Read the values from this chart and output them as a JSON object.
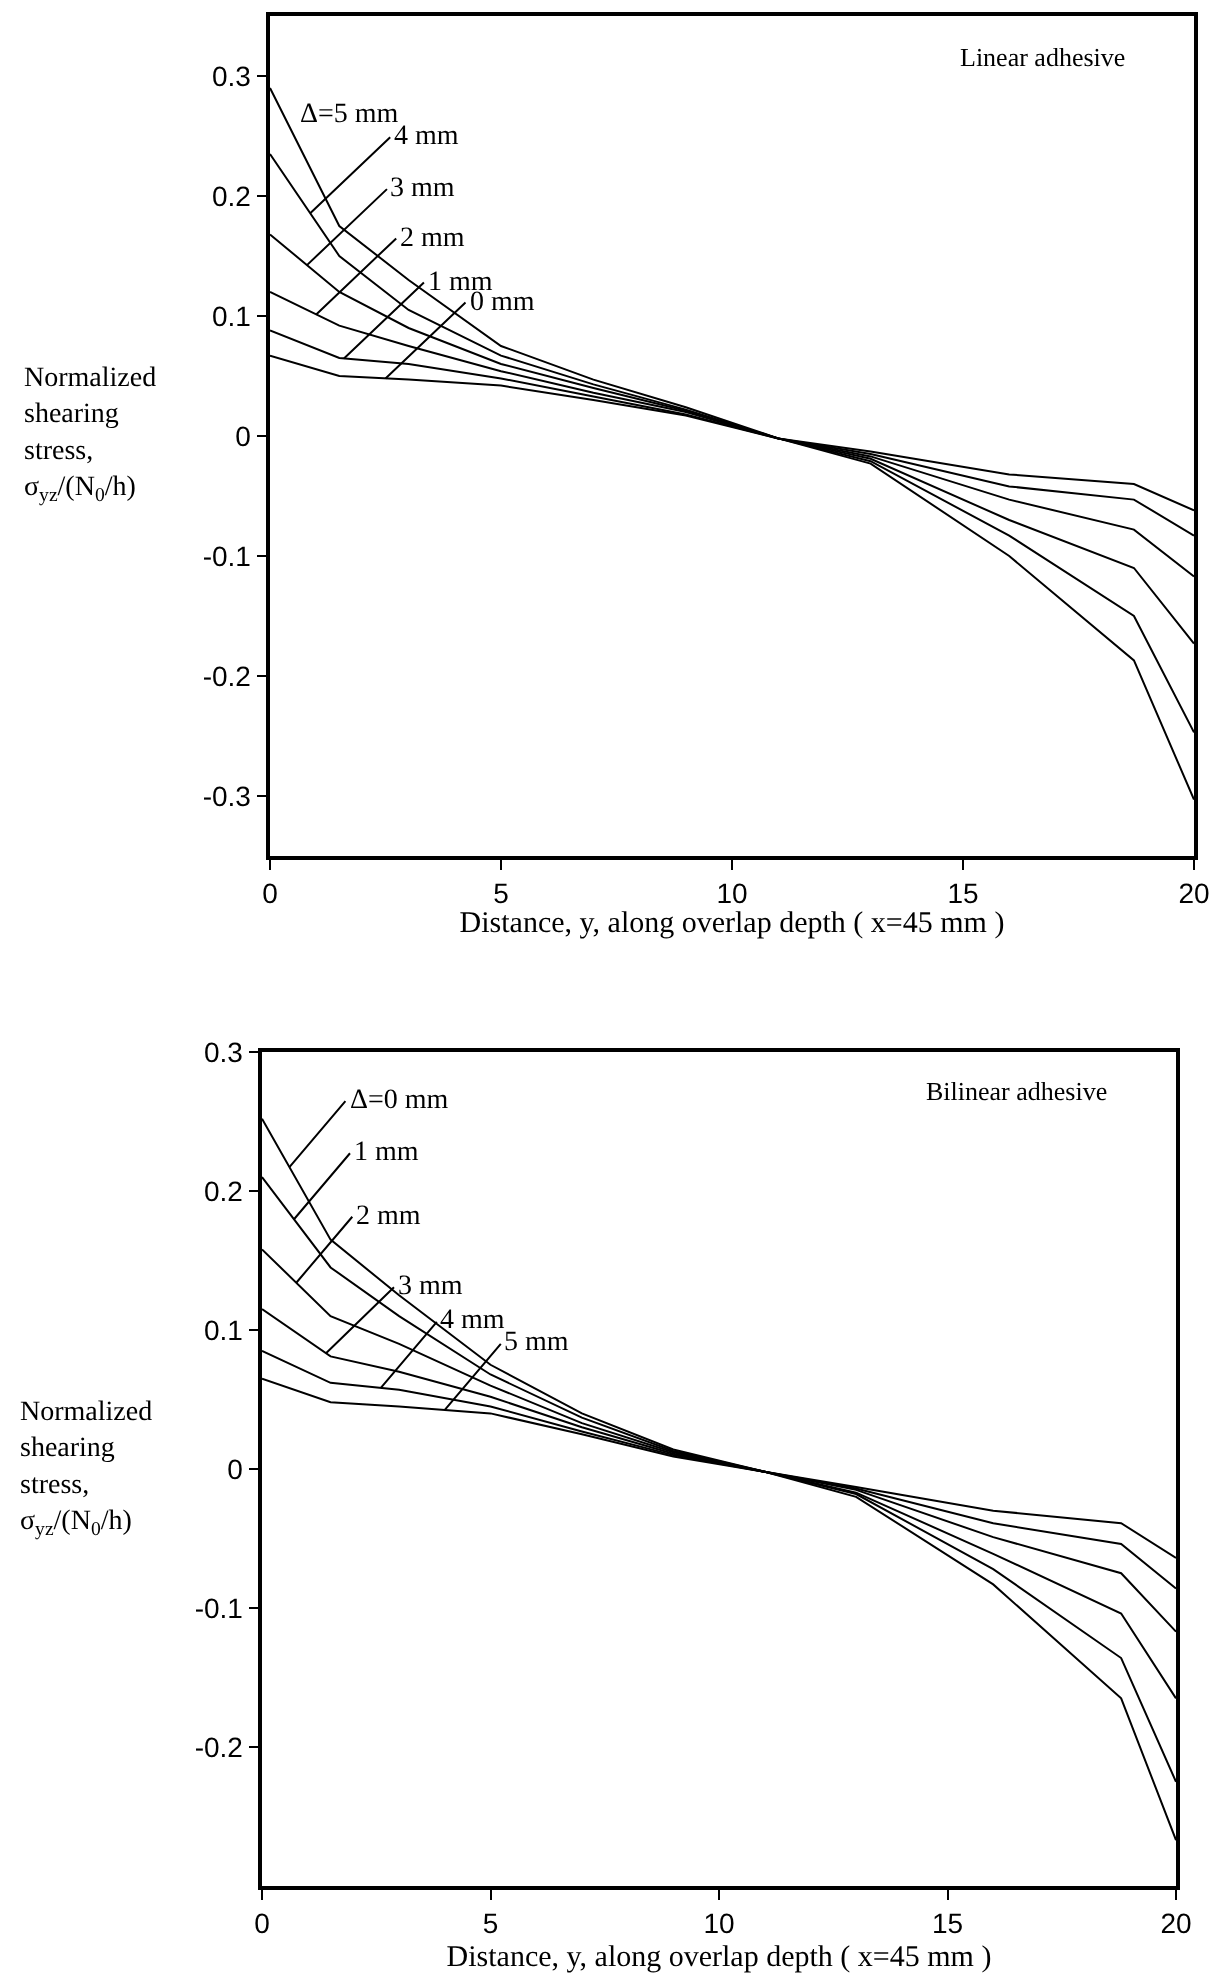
{
  "chart_data": [
    {
      "type": "line",
      "title": "Linear adhesive",
      "xlabel": "Distance, y, along overlap depth ( x=45 mm )",
      "ylabel": "Normalized shearing stress, σ$_{yz}$/(N$_{0}$/h)",
      "x": [
        0,
        1.5,
        3,
        5,
        7,
        9,
        11,
        13,
        16,
        18.7,
        20
      ],
      "series": [
        {
          "name": "Δ=5 mm",
          "color": "#000000",
          "values": [
            0.29,
            0.175,
            0.13,
            0.075,
            0.047,
            0.024,
            -0.002,
            -0.023,
            -0.1,
            -0.187,
            -0.303
          ]
        },
        {
          "name": "4 mm",
          "color": "#000000",
          "values": [
            0.235,
            0.15,
            0.105,
            0.067,
            0.043,
            0.022,
            -0.002,
            -0.021,
            -0.083,
            -0.15,
            -0.247
          ]
        },
        {
          "name": "3 mm",
          "color": "#000000",
          "values": [
            0.168,
            0.12,
            0.09,
            0.06,
            0.04,
            0.021,
            -0.002,
            -0.019,
            -0.07,
            -0.11,
            -0.173
          ]
        },
        {
          "name": "2 mm",
          "color": "#000000",
          "values": [
            0.12,
            0.092,
            0.075,
            0.054,
            0.036,
            0.02,
            -0.002,
            -0.017,
            -0.053,
            -0.078,
            -0.117
          ]
        },
        {
          "name": "1 mm",
          "color": "#000000",
          "values": [
            0.088,
            0.065,
            0.06,
            0.048,
            0.033,
            0.018,
            -0.002,
            -0.015,
            -0.042,
            -0.053,
            -0.083
          ]
        },
        {
          "name": "0 mm",
          "color": "#000000",
          "values": [
            0.067,
            0.05,
            0.047,
            0.042,
            0.03,
            0.017,
            -0.002,
            -0.013,
            -0.032,
            -0.04,
            -0.062
          ]
        }
      ],
      "xlim": [
        0,
        20
      ],
      "xticks": [
        0,
        5,
        10,
        15,
        20
      ],
      "ylim": [
        -0.35,
        0.35
      ],
      "yticks": [
        -0.3,
        -0.2,
        -0.1,
        0,
        0.1,
        0.2,
        0.3
      ],
      "grid": false,
      "legend": false,
      "marker": "none",
      "line_style": "solid"
    },
    {
      "type": "line",
      "title": "Bilinear adhesive",
      "xlabel": "Distance, y, along overlap depth ( x=45 mm )",
      "ylabel": "Normalized shearing stress, σ$_{yz}$/(N$_{0}$/h)",
      "x": [
        0,
        1.5,
        3,
        5,
        7,
        9,
        11,
        13,
        16,
        18.8,
        20
      ],
      "series": [
        {
          "name": "Δ=0 mm",
          "color": "#000000",
          "values": [
            0.252,
            0.165,
            0.125,
            0.075,
            0.04,
            0.014,
            -0.002,
            -0.02,
            -0.083,
            -0.165,
            -0.267
          ]
        },
        {
          "name": "1 mm",
          "color": "#000000",
          "values": [
            0.21,
            0.145,
            0.11,
            0.068,
            0.037,
            0.013,
            -0.002,
            -0.018,
            -0.072,
            -0.136,
            -0.225
          ]
        },
        {
          "name": "2 mm",
          "color": "#000000",
          "values": [
            0.158,
            0.11,
            0.09,
            0.06,
            0.033,
            0.012,
            -0.002,
            -0.017,
            -0.061,
            -0.104,
            -0.165
          ]
        },
        {
          "name": "3 mm",
          "color": "#000000",
          "values": [
            0.115,
            0.081,
            0.07,
            0.052,
            0.03,
            0.011,
            -0.002,
            -0.015,
            -0.049,
            -0.075,
            -0.117
          ]
        },
        {
          "name": "4 mm",
          "color": "#000000",
          "values": [
            0.085,
            0.062,
            0.057,
            0.045,
            0.027,
            0.01,
            -0.002,
            -0.014,
            -0.039,
            -0.054,
            -0.086
          ]
        },
        {
          "name": "5 mm",
          "color": "#000000",
          "values": [
            0.065,
            0.048,
            0.045,
            0.04,
            0.025,
            0.009,
            -0.002,
            -0.013,
            -0.03,
            -0.039,
            -0.064
          ]
        }
      ],
      "xlim": [
        0,
        20
      ],
      "xticks": [
        0,
        5,
        10,
        15,
        20
      ],
      "ylim": [
        -0.3,
        0.3
      ],
      "yticks": [
        -0.2,
        -0.1,
        0,
        0.1,
        0.2,
        0.3
      ],
      "grid": false,
      "legend": false,
      "marker": "none",
      "line_style": "solid"
    }
  ]
}
